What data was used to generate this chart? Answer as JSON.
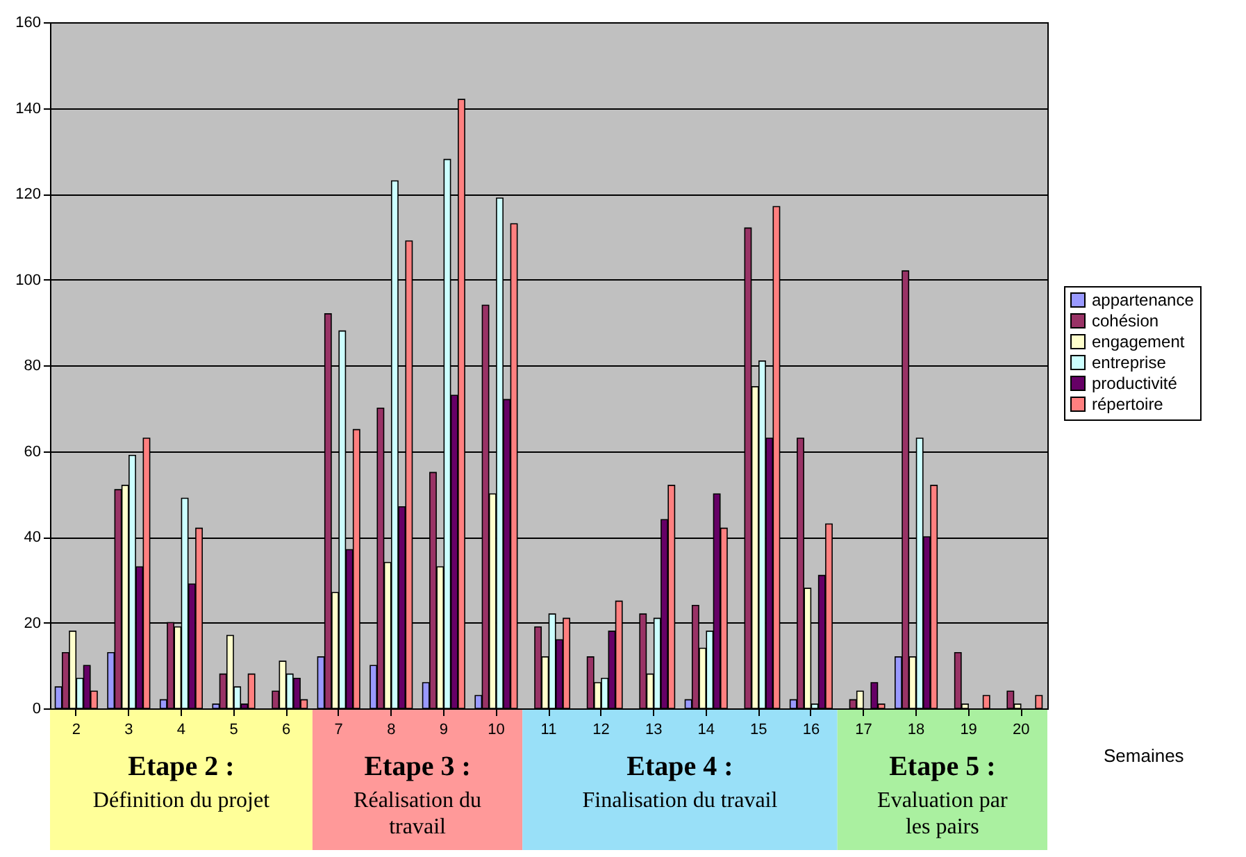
{
  "chart_data": {
    "type": "bar",
    "xlabel": "Semaines",
    "categories": [
      "2",
      "3",
      "4",
      "5",
      "6",
      "7",
      "8",
      "9",
      "10",
      "11",
      "12",
      "13",
      "14",
      "15",
      "16",
      "17",
      "18",
      "19",
      "20"
    ],
    "series": [
      {
        "name": "appartenance",
        "color": "#9999ff",
        "values": [
          5,
          13,
          2,
          1,
          0,
          12,
          10,
          6,
          3,
          0,
          0,
          0,
          2,
          0,
          2,
          0,
          12,
          0,
          0
        ]
      },
      {
        "name": "cohésion",
        "color": "#993366",
        "values": [
          13,
          51,
          20,
          8,
          4,
          92,
          70,
          55,
          94,
          19,
          12,
          22,
          24,
          112,
          63,
          2,
          102,
          13,
          4
        ]
      },
      {
        "name": "engagement",
        "color": "#ffffcc",
        "values": [
          18,
          52,
          19,
          17,
          11,
          27,
          34,
          33,
          50,
          12,
          6,
          8,
          14,
          75,
          28,
          4,
          12,
          1,
          1
        ]
      },
      {
        "name": "entreprise",
        "color": "#ccffff",
        "values": [
          7,
          59,
          49,
          5,
          8,
          88,
          123,
          128,
          119,
          22,
          7,
          21,
          18,
          81,
          1,
          0,
          63,
          0,
          0
        ]
      },
      {
        "name": "productivité",
        "color": "#660066",
        "values": [
          10,
          33,
          29,
          1,
          7,
          37,
          47,
          73,
          72,
          16,
          18,
          44,
          50,
          63,
          31,
          6,
          40,
          0,
          0
        ]
      },
      {
        "name": "répertoire",
        "color": "#ff8080",
        "values": [
          4,
          63,
          42,
          8,
          2,
          65,
          109,
          142,
          113,
          21,
          25,
          52,
          42,
          117,
          43,
          1,
          52,
          3,
          3
        ]
      }
    ],
    "ylim": [
      0,
      160
    ],
    "yticks": [
      0,
      20,
      40,
      60,
      80,
      100,
      120,
      140,
      160
    ],
    "grid": "y",
    "legend": "right",
    "annotations": [
      "Etape 2 :\nDéfinition du projet",
      "Etape 3 :\nRéalisation du\ntravail",
      "Etape 4 :\nFinalisation du travail",
      "Etape 5 :\nEvaluation par\nles pairs"
    ]
  }
}
